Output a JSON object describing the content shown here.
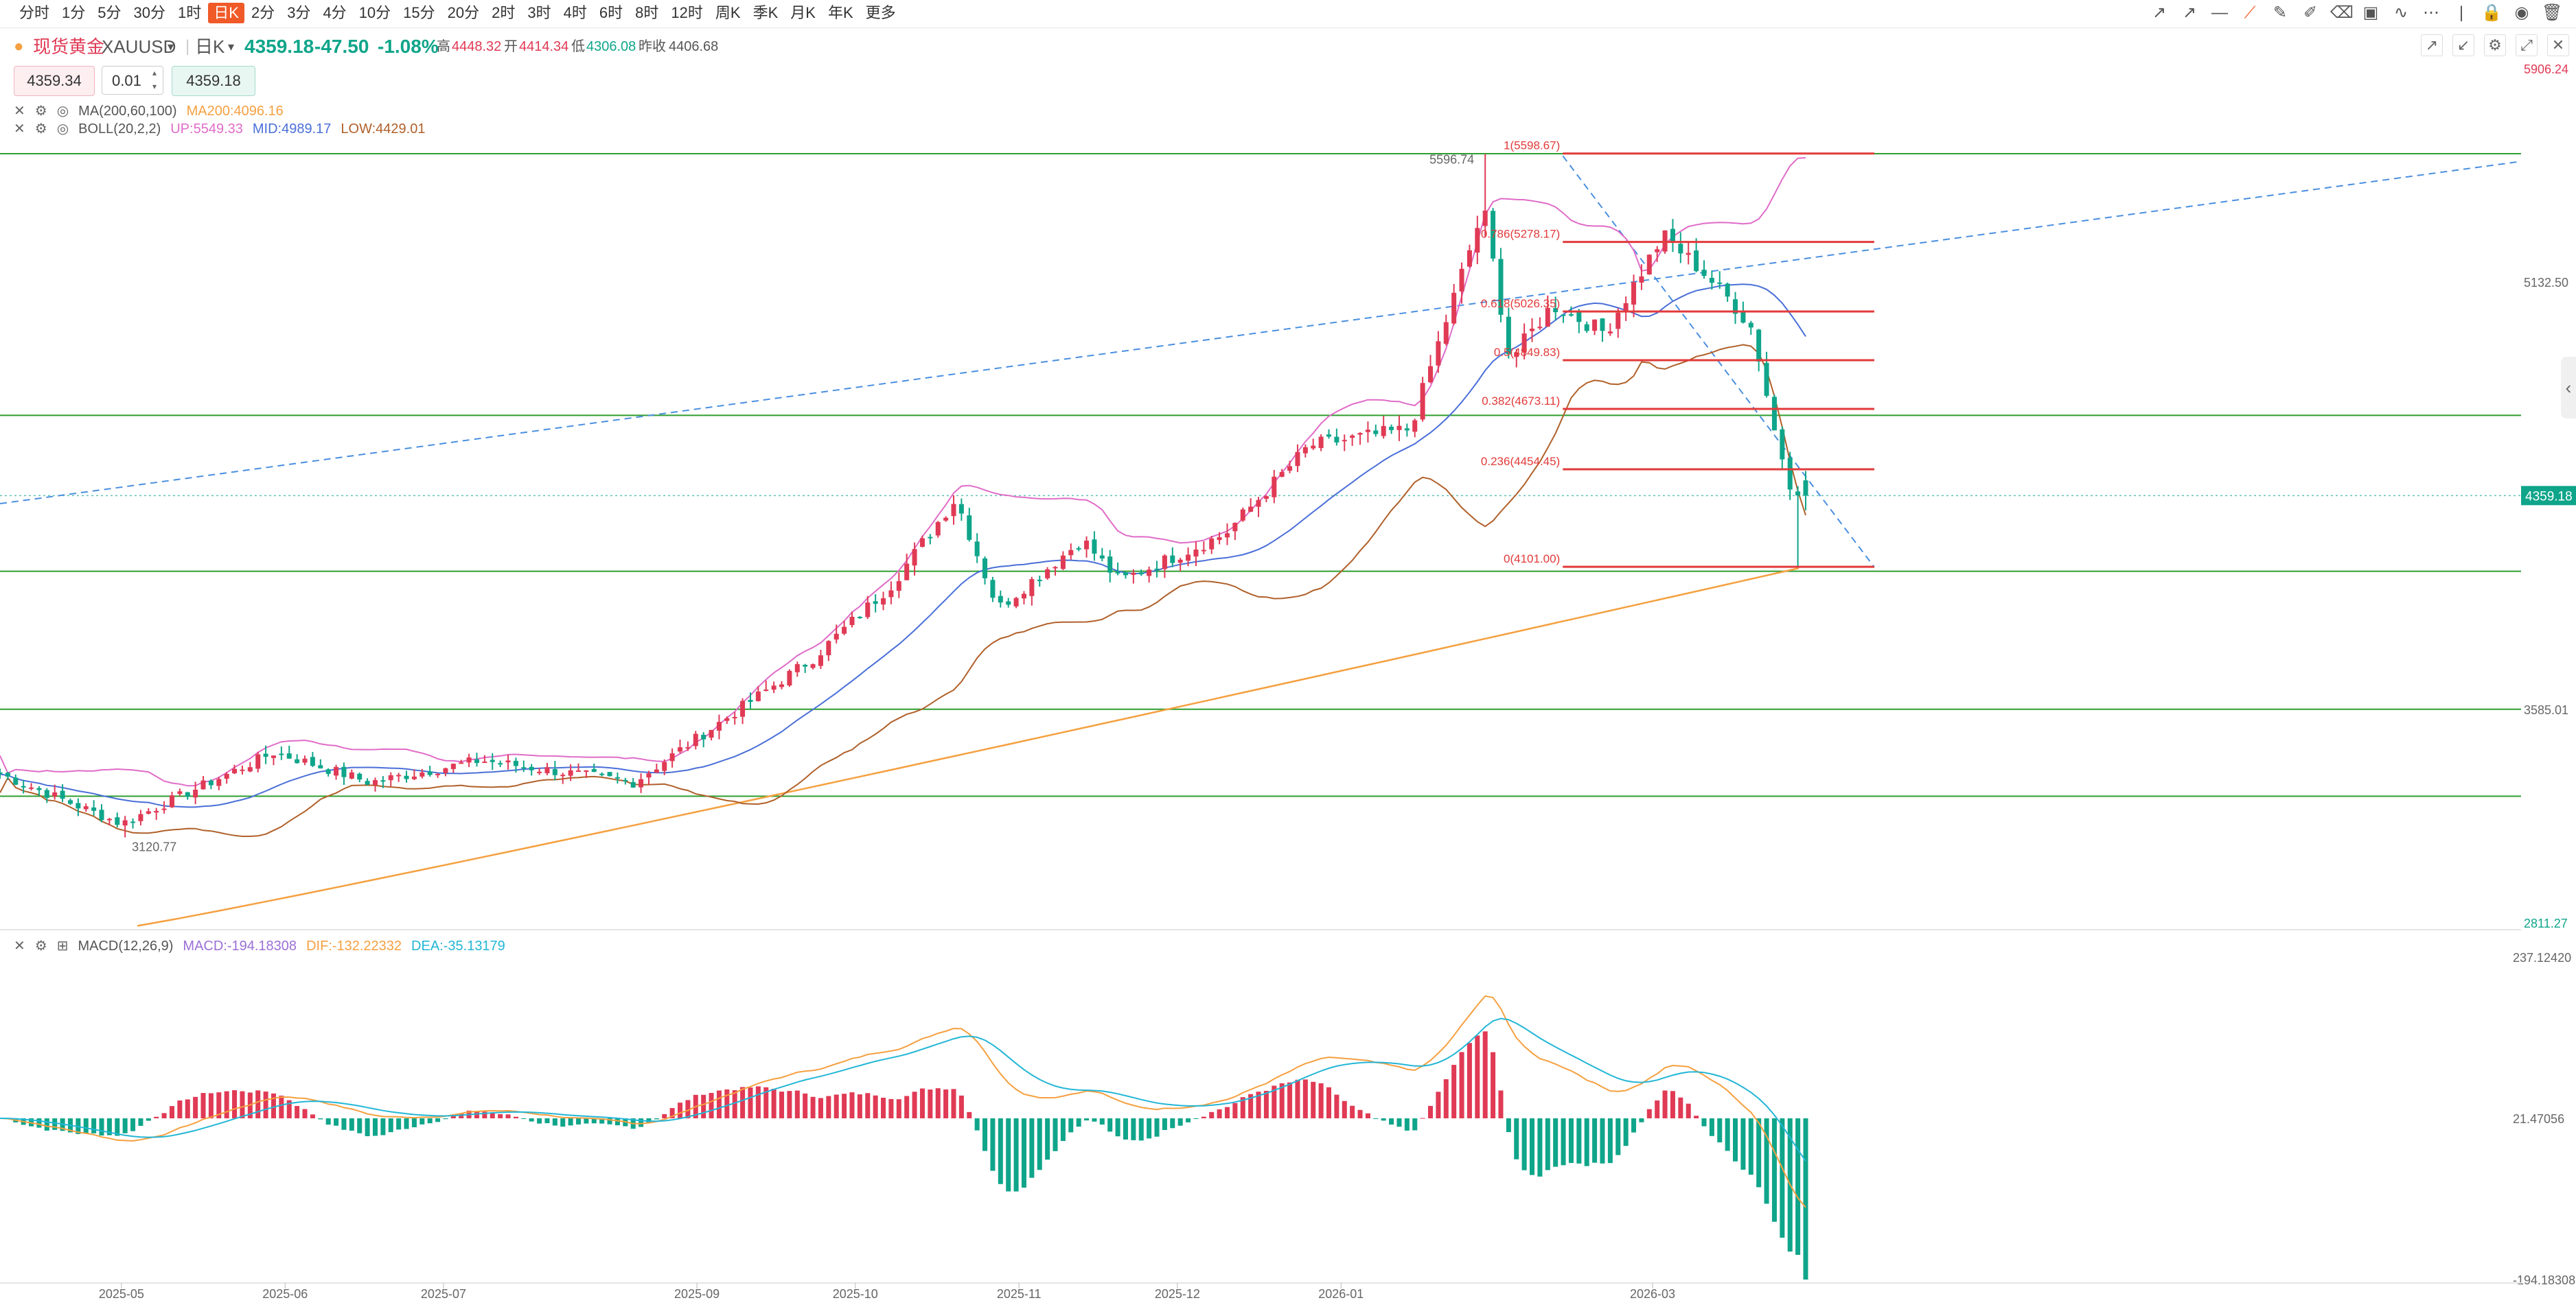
{
  "toolbar": {
    "timeframes": [
      "分时",
      "1分",
      "5分",
      "30分",
      "1时",
      "日K",
      "2分",
      "3分",
      "4分",
      "10分",
      "15分",
      "20分",
      "2时",
      "3时",
      "4时",
      "6时",
      "8时",
      "12时",
      "周K",
      "季K",
      "月K",
      "年K",
      "更多"
    ],
    "active_timeframe": "日K",
    "tools": [
      "arrow-icon",
      "ray-icon",
      "horizontal-line-icon",
      "segment-icon",
      "pencil-icon",
      "brush-icon",
      "eraser-pen-icon",
      "image-icon",
      "trend-icon",
      "more-icon",
      "divider-icon",
      "lock-icon",
      "visible-icon",
      "trash-icon"
    ]
  },
  "symbol": {
    "name": "现货黄金",
    "code": "XAUUSD",
    "period": "日K",
    "price": "4359.18",
    "change": "-47.50",
    "change_pct": "-1.08%",
    "high_label": "高",
    "high": "4448.32",
    "open_label": "开",
    "open": "4414.34",
    "low_label": "低",
    "low": "4306.08",
    "prev_close_label": "昨收",
    "prev_close": "4406.68"
  },
  "order": {
    "sell_price": "4359.34",
    "qty": "0.01",
    "buy_price": "4359.18"
  },
  "indicators": {
    "ma_label": "MA(200,60,100)",
    "ma200": "MA200:4096.16",
    "boll_label": "BOLL(20,2,2)",
    "boll_up": "UP:5549.33",
    "boll_mid": "MID:4989.17",
    "boll_low": "LOW:4429.01",
    "macd_label": "MACD(12,26,9)",
    "macd_val": "MACD:-194.18308",
    "dif_val": "DIF:-132.22332",
    "dea_val": "DEA:-35.13179"
  },
  "colors": {
    "up": "#e03a55",
    "down": "#0fa58a",
    "ma200": "#f5a040",
    "boll_up": "#e06cc8",
    "boll_mid": "#4a6fd8",
    "boll_low": "#b0602a",
    "support_line": "#2f9e2f",
    "fib_line": "#e23a3a",
    "trend_dash": "#4a8fe0",
    "dif": "#f5a040",
    "dea": "#23b6d6"
  },
  "chart_data": [
    {
      "type": "candlestick",
      "title": "现货黄金 XAUUSD 日K",
      "x_ticks": [
        "2025-05",
        "2025-06",
        "2025-07",
        "2025-09",
        "2025-10",
        "2025-11",
        "2025-12",
        "2026-01",
        "2026-03"
      ],
      "y_ticks": [
        "5906.24",
        "5132.50",
        "3585.01",
        "2811.27"
      ],
      "ylim": [
        2811.27,
        5906.24
      ],
      "current_price_label": "4359.18",
      "annotations": {
        "high": "5596.74",
        "low": "3120.77"
      },
      "fib_levels": [
        {
          "label": "1(5598.67)",
          "value": 5598.67
        },
        {
          "label": "0.786(5278.17)",
          "value": 5278.17
        },
        {
          "label": "0.618(5026.35)",
          "value": 5026.35
        },
        {
          "label": "0.5(4849.83)",
          "value": 4849.83
        },
        {
          "label": "0.382(4673.11)",
          "value": 4673.11
        },
        {
          "label": "0.236(4454.45)",
          "value": 4454.45
        },
        {
          "label": "0(4101.00)",
          "value": 4101.0
        }
      ],
      "support_lines": [
        5598.0,
        4650.0,
        4085.0,
        3585.0,
        3270.0
      ],
      "anchors": [
        {
          "date": "2025-04-22",
          "close": 3350
        },
        {
          "date": "2025-05-15",
          "close": 3170
        },
        {
          "date": "2025-06-13",
          "close": 3430
        },
        {
          "date": "2025-07-01",
          "close": 3320
        },
        {
          "date": "2025-07-22",
          "close": 3400
        },
        {
          "date": "2025-08-20",
          "close": 3320
        },
        {
          "date": "2025-09-01",
          "close": 3480
        },
        {
          "date": "2025-09-23",
          "close": 3770
        },
        {
          "date": "2025-10-08",
          "close": 4040
        },
        {
          "date": "2025-10-20",
          "close": 4350
        },
        {
          "date": "2025-10-28",
          "close": 3950
        },
        {
          "date": "2025-11-13",
          "close": 4200
        },
        {
          "date": "2025-11-20",
          "close": 4050
        },
        {
          "date": "2025-12-10",
          "close": 4220
        },
        {
          "date": "2025-12-26",
          "close": 4540
        },
        {
          "date": "2026-01-14",
          "close": 4600
        },
        {
          "date": "2026-01-28",
          "close": 5400
        },
        {
          "date": "2026-02-02",
          "close": 4850
        },
        {
          "date": "2026-02-10",
          "close": 5050
        },
        {
          "date": "2026-02-20",
          "close": 4950
        },
        {
          "date": "2026-03-03",
          "close": 5300
        },
        {
          "date": "2026-03-10",
          "close": 5180
        },
        {
          "date": "2026-03-16",
          "close": 5060
        },
        {
          "date": "2026-03-20",
          "close": 4960
        },
        {
          "date": "2026-03-24",
          "close": 4600
        },
        {
          "date": "2026-03-27",
          "close": 4406.68
        },
        {
          "date": "2026-03-30",
          "close": 4359.18
        }
      ]
    },
    {
      "type": "bar",
      "title": "MACD(12,26,9)",
      "y_ticks": [
        "237.12420",
        "21.47056",
        "-194.18308"
      ],
      "ylim": [
        -194.18308,
        237.1242
      ],
      "last_values": {
        "macd": -194.18308,
        "dif": -132.22332,
        "dea": -35.13179
      }
    }
  ]
}
